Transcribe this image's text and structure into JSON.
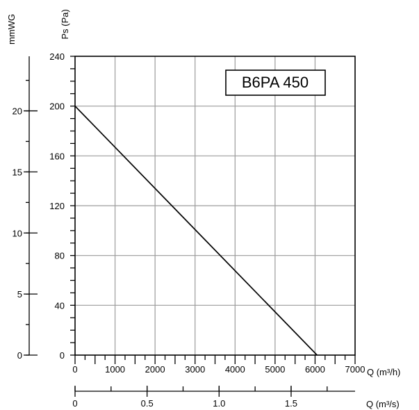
{
  "chart_data": {
    "type": "line",
    "title": "B6PA 450",
    "x": [
      0,
      6050
    ],
    "y": [
      200,
      0
    ],
    "xlabel": "Q (m³/h)",
    "ylabel": "Ps (Pa)",
    "xlim": [
      0,
      7000
    ],
    "ylim": [
      0,
      240
    ],
    "grid": true,
    "x_ticks": [
      "0",
      "1000",
      "2000",
      "3000",
      "4000",
      "5000",
      "6000",
      "7000"
    ],
    "y_ticks": [
      "0",
      "40",
      "80",
      "120",
      "160",
      "200",
      "240"
    ],
    "secondary_y": {
      "label": "mmWG",
      "ticks": [
        "0",
        "5",
        "10",
        "15",
        "20"
      ],
      "lim": [
        0,
        24.47
      ]
    },
    "secondary_x": {
      "label": "Q (m³/s)",
      "ticks": [
        "0",
        "0.5",
        "1.0",
        "1.5"
      ],
      "lim": [
        0,
        1.944
      ]
    }
  }
}
